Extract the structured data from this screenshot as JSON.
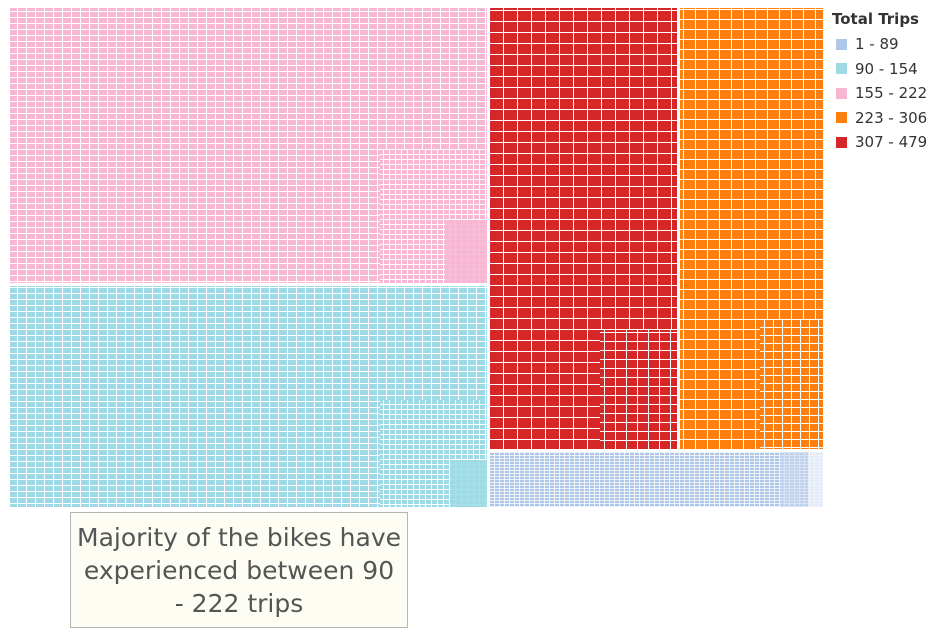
{
  "chart_data": {
    "type": "heatmap",
    "subtype": "treemap",
    "measure": "Total Trips",
    "legend_title": "Total Trips",
    "legend_position": "top-right",
    "bins": [
      {
        "label": "1 - 89",
        "min": 1,
        "max": 89,
        "color": "#aec7e8"
      },
      {
        "label": "90 - 154",
        "min": 90,
        "max": 154,
        "color": "#9edae5"
      },
      {
        "label": "155 - 222",
        "min": 155,
        "max": 222,
        "color": "#f7b6d2"
      },
      {
        "label": "223 - 306",
        "min": 223,
        "max": 306,
        "color": "#ff7f0e"
      },
      {
        "label": "307 - 479",
        "min": 307,
        "max": 479,
        "color": "#d62728"
      }
    ],
    "annotation": "Majority of the bikes have experienced between 90 - 222 trips"
  }
}
